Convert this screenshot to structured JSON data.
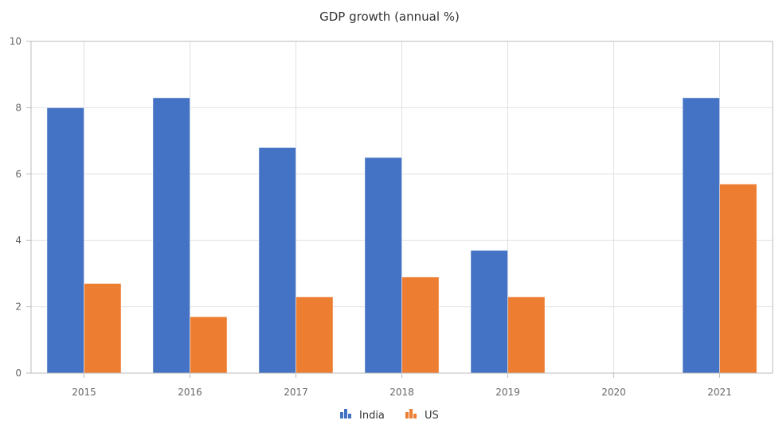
{
  "chart_data": {
    "type": "bar",
    "title": "GDP growth (annual %)",
    "xlabel": "",
    "ylabel": "",
    "categories": [
      "2015",
      "2016",
      "2017",
      "2018",
      "2019",
      "2020",
      "2021"
    ],
    "series": [
      {
        "name": "India",
        "color": "#4472c4",
        "values": [
          8.0,
          8.3,
          6.8,
          6.5,
          3.7,
          null,
          8.3
        ]
      },
      {
        "name": "US",
        "color": "#ed7d31",
        "values": [
          2.7,
          1.7,
          2.3,
          2.9,
          2.3,
          null,
          5.7
        ]
      }
    ],
    "ylim": [
      0,
      10
    ],
    "yticks": [
      "0",
      "2",
      "4",
      "6",
      "8",
      "10"
    ],
    "grid": true,
    "legend": "bottom-center"
  }
}
